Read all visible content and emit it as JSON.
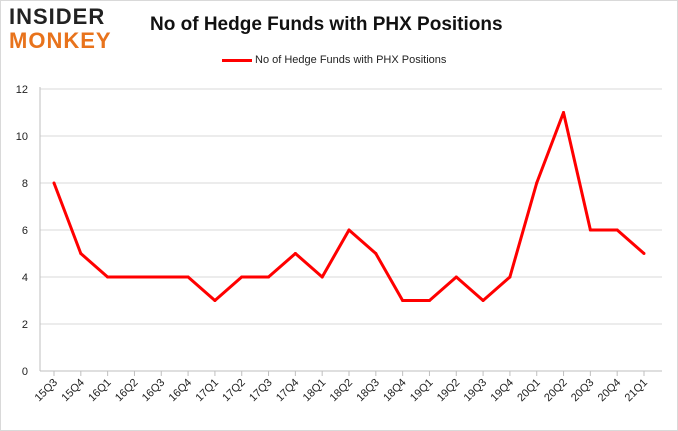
{
  "logo": {
    "line1": "INSIDER",
    "line2": "MONKEY"
  },
  "chart_data": {
    "type": "line",
    "title": "No of Hedge Funds with PHX Positions",
    "xlabel": "",
    "ylabel": "",
    "categories": [
      "15Q3",
      "15Q4",
      "16Q1",
      "16Q2",
      "16Q3",
      "16Q4",
      "17Q1",
      "17Q2",
      "17Q3",
      "17Q4",
      "18Q1",
      "18Q2",
      "18Q3",
      "18Q4",
      "19Q1",
      "19Q2",
      "19Q3",
      "19Q4",
      "20Q1",
      "20Q2",
      "20Q3",
      "20Q4",
      "21Q1"
    ],
    "series": [
      {
        "name": "No of Hedge Funds with PHX Positions",
        "color": "#ff0000",
        "values": [
          8,
          5,
          4,
          4,
          4,
          4,
          3,
          4,
          4,
          5,
          4,
          6,
          5,
          3,
          3,
          4,
          3,
          4,
          8,
          11,
          6,
          6,
          5
        ]
      }
    ],
    "ylim": [
      0,
      12
    ],
    "yticks": [
      0,
      2,
      4,
      6,
      8,
      10,
      12
    ],
    "grid": true,
    "legend_position": "top-center"
  }
}
